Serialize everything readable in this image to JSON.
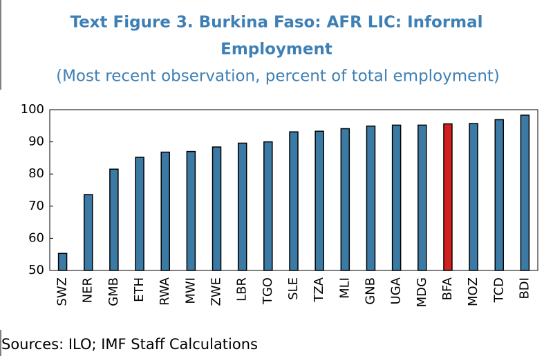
{
  "chart_data": {
    "type": "bar",
    "title": [
      "Text Figure 3. Burkina Faso: AFR LIC: Informal",
      "Employment"
    ],
    "subtitle": "(Most recent observation, percent of total employment)",
    "categories": [
      "SWZ",
      "NER",
      "GMB",
      "ETH",
      "RWA",
      "MWI",
      "ZWE",
      "LBR",
      "TGO",
      "SLE",
      "TZA",
      "MLI",
      "GNB",
      "UGA",
      "MDG",
      "BFA",
      "MOZ",
      "TCD",
      "BDI"
    ],
    "values": [
      55.3,
      73.6,
      81.5,
      85.2,
      86.8,
      87.0,
      88.4,
      89.6,
      90.0,
      93.1,
      93.3,
      94.1,
      94.9,
      95.2,
      95.2,
      95.6,
      95.7,
      96.9,
      98.3
    ],
    "colors": [
      "#3b7aa5",
      "#3b7aa5",
      "#3b7aa5",
      "#3b7aa5",
      "#3b7aa5",
      "#3b7aa5",
      "#3b7aa5",
      "#3b7aa5",
      "#3b7aa5",
      "#3b7aa5",
      "#3b7aa5",
      "#3b7aa5",
      "#3b7aa5",
      "#3b7aa5",
      "#3b7aa5",
      "#d21f1f",
      "#3b7aa5",
      "#3b7aa5",
      "#3b7aa5"
    ],
    "ylim": [
      50,
      100
    ],
    "yticks": [
      50,
      60,
      70,
      80,
      90,
      100
    ],
    "source": "Sources:  ILO; IMF Staff Calculations"
  }
}
